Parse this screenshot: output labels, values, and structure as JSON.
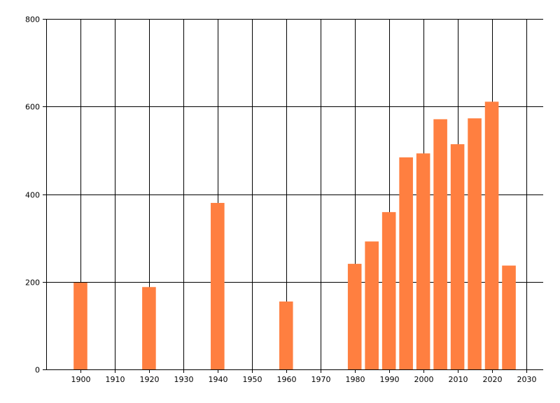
{
  "chart_data": {
    "type": "bar",
    "title": "",
    "xlabel": "",
    "ylabel": "",
    "x": [
      1900,
      1920,
      1940,
      1960,
      1980,
      1985,
      1990,
      1995,
      2000,
      2005,
      2010,
      2015,
      2020,
      2025
    ],
    "values": [
      198,
      188,
      380,
      155,
      241,
      292,
      359,
      484,
      493,
      571,
      514,
      573,
      611,
      237
    ],
    "xlim": [
      1890,
      2035
    ],
    "ylim": [
      0,
      800
    ],
    "x_ticks": [
      1900,
      1910,
      1920,
      1930,
      1940,
      1950,
      1960,
      1970,
      1980,
      1990,
      2000,
      2010,
      2020,
      2030
    ],
    "y_ticks": [
      0,
      200,
      400,
      600,
      800
    ],
    "grid": true,
    "bar_color": "#ff7f40"
  }
}
